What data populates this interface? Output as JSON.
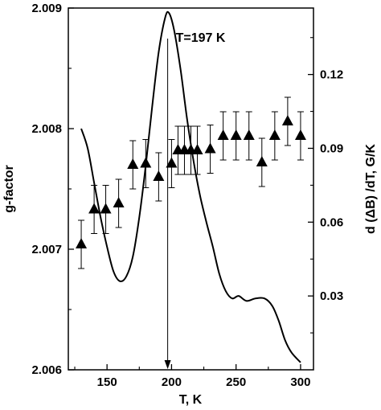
{
  "chart_data": {
    "type": "scatter",
    "xlabel": "T, K",
    "ylabel_left": "g-factor",
    "ylabel_right": "d (ΔB) /dT, G/K",
    "xlim": [
      120,
      310
    ],
    "ylim_left": [
      2.006,
      2.009
    ],
    "ylim_right": [
      0.0,
      0.147
    ],
    "x_ticks": [
      "150",
      "200",
      "250",
      "300"
    ],
    "y_ticks_left": [
      "2.006",
      "2.007",
      "2.008",
      "2.009"
    ],
    "y_ticks_right": [
      "0.03",
      "0.06",
      "0.09",
      "0.12"
    ],
    "annotation": "T=197 K",
    "annotation_x": 197,
    "g_factor_points": [
      {
        "x": 130,
        "y": 2.00704,
        "err": 0.0002
      },
      {
        "x": 140,
        "y": 2.00733,
        "err": 0.0002
      },
      {
        "x": 149,
        "y": 2.00733,
        "err": 0.0002
      },
      {
        "x": 159,
        "y": 2.00738,
        "err": 0.0002
      },
      {
        "x": 170,
        "y": 2.0077,
        "err": 0.0002
      },
      {
        "x": 180,
        "y": 2.00771,
        "err": 0.0002
      },
      {
        "x": 190,
        "y": 2.0076,
        "err": 0.0002
      },
      {
        "x": 200,
        "y": 2.00771,
        "err": 0.0002
      },
      {
        "x": 205,
        "y": 2.00782,
        "err": 0.0002
      },
      {
        "x": 210,
        "y": 2.00782,
        "err": 0.0002
      },
      {
        "x": 215,
        "y": 2.00782,
        "err": 0.0002
      },
      {
        "x": 220,
        "y": 2.00782,
        "err": 0.0002
      },
      {
        "x": 230,
        "y": 2.00783,
        "err": 0.0002
      },
      {
        "x": 240,
        "y": 2.00794,
        "err": 0.0002
      },
      {
        "x": 250,
        "y": 2.00794,
        "err": 0.0002
      },
      {
        "x": 260,
        "y": 2.00794,
        "err": 0.0002
      },
      {
        "x": 270,
        "y": 2.00772,
        "err": 0.0002
      },
      {
        "x": 280,
        "y": 2.00794,
        "err": 0.0002
      },
      {
        "x": 290,
        "y": 2.00806,
        "err": 0.0002
      },
      {
        "x": 300,
        "y": 2.00794,
        "err": 0.0002
      }
    ],
    "derivative_curve": [
      {
        "x": 130,
        "y": 0.098
      },
      {
        "x": 135,
        "y": 0.09
      },
      {
        "x": 140,
        "y": 0.076
      },
      {
        "x": 145,
        "y": 0.062
      },
      {
        "x": 150,
        "y": 0.05
      },
      {
        "x": 155,
        "y": 0.04
      },
      {
        "x": 160,
        "y": 0.036
      },
      {
        "x": 165,
        "y": 0.038
      },
      {
        "x": 170,
        "y": 0.046
      },
      {
        "x": 175,
        "y": 0.062
      },
      {
        "x": 180,
        "y": 0.083
      },
      {
        "x": 185,
        "y": 0.107
      },
      {
        "x": 190,
        "y": 0.129
      },
      {
        "x": 195,
        "y": 0.143
      },
      {
        "x": 198,
        "y": 0.145
      },
      {
        "x": 202,
        "y": 0.138
      },
      {
        "x": 207,
        "y": 0.122
      },
      {
        "x": 212,
        "y": 0.102
      },
      {
        "x": 217,
        "y": 0.085
      },
      {
        "x": 222,
        "y": 0.071
      },
      {
        "x": 227,
        "y": 0.06
      },
      {
        "x": 232,
        "y": 0.05
      },
      {
        "x": 237,
        "y": 0.039
      },
      {
        "x": 242,
        "y": 0.032
      },
      {
        "x": 247,
        "y": 0.029
      },
      {
        "x": 252,
        "y": 0.03
      },
      {
        "x": 258,
        "y": 0.028
      },
      {
        "x": 265,
        "y": 0.029
      },
      {
        "x": 272,
        "y": 0.029
      },
      {
        "x": 278,
        "y": 0.026
      },
      {
        "x": 283,
        "y": 0.02
      },
      {
        "x": 288,
        "y": 0.012
      },
      {
        "x": 293,
        "y": 0.007
      },
      {
        "x": 300,
        "y": 0.003
      }
    ]
  }
}
